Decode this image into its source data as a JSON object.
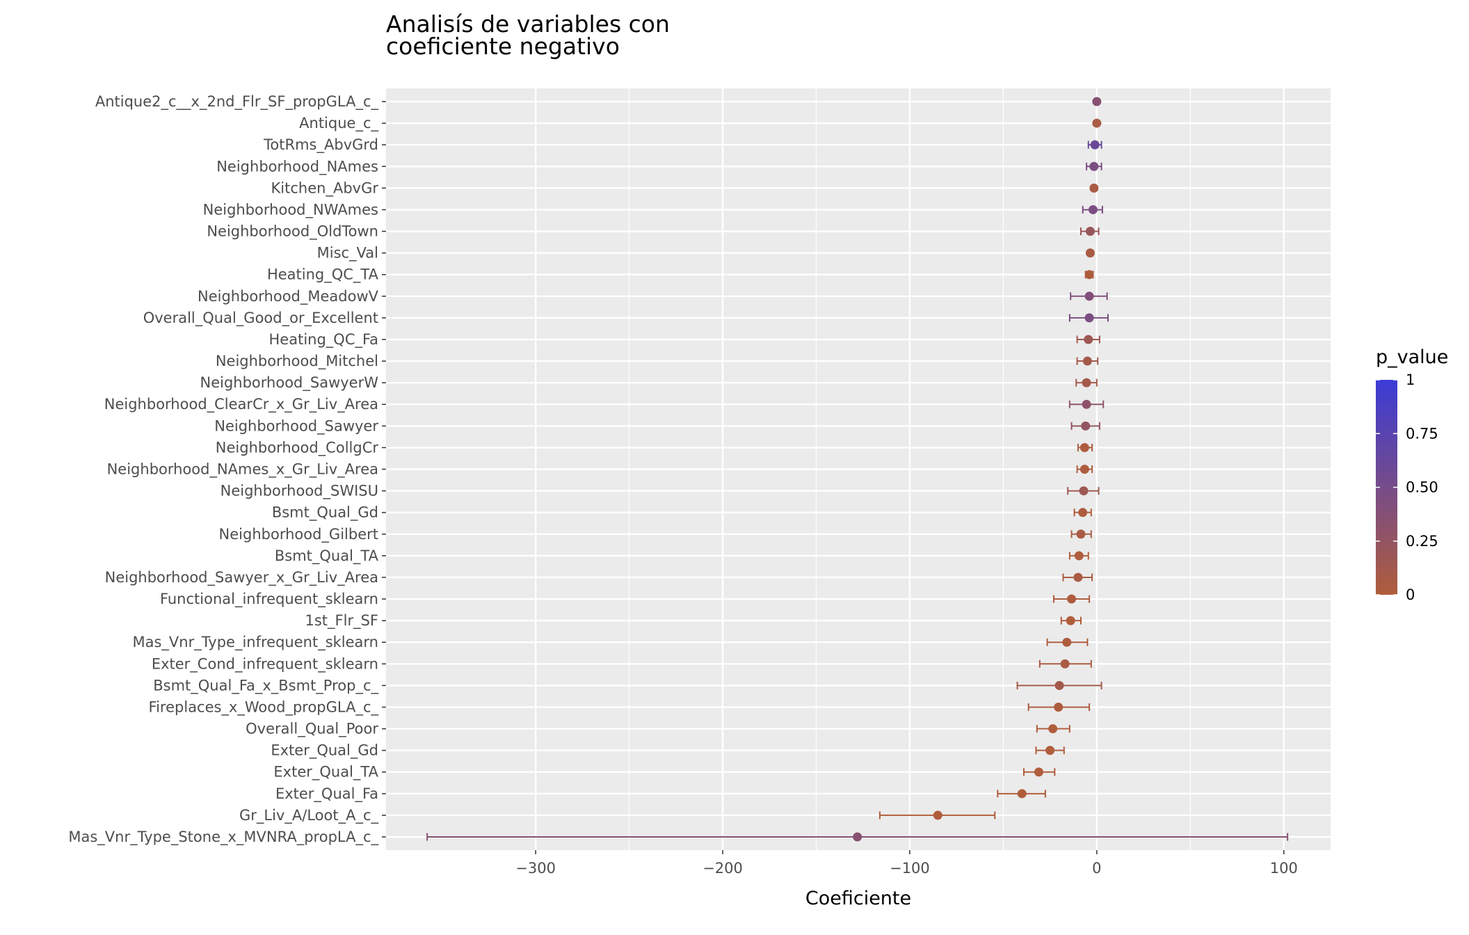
{
  "chart_data": {
    "type": "errorbar",
    "title_lines": [
      "Analisís de variables con",
      "coeficiente negativo"
    ],
    "xlabel": "Coeficiente",
    "ylabel": "",
    "xlim": [
      -380,
      125
    ],
    "x_ticks": [
      -300,
      -200,
      -100,
      0,
      100
    ],
    "x_tick_labels": [
      "−300",
      "−200",
      "−100",
      "0",
      "100"
    ],
    "grid": true,
    "legend": {
      "title": "p_value",
      "position": "right",
      "range": [
        0,
        1
      ],
      "ticks": [
        0,
        0.25,
        0.5,
        0.75,
        1
      ],
      "tick_labels": [
        "0",
        "0.25",
        "0.50",
        "0.75",
        "1"
      ],
      "color_low": "#b05d3b",
      "color_high": "#3b3bd6"
    },
    "colors": {
      "panel": "#ebebeb",
      "grid": "#ffffff",
      "tick": "#333333"
    },
    "points": [
      {
        "variable": "Antique2_c__x_2nd_Flr_SF_propGLA_c_",
        "coef": 0.0,
        "low": 0.0,
        "high": 0.0,
        "p_value": 0.35
      },
      {
        "variable": "Antique_c_",
        "coef": 0.0,
        "low": 0.0,
        "high": 0.0,
        "p_value": 0.05
      },
      {
        "variable": "TotRms_AbvGrd",
        "coef": -1.0,
        "low": -4.5,
        "high": 2.5,
        "p_value": 0.6
      },
      {
        "variable": "Neighborhood_NAmes",
        "coef": -1.5,
        "low": -5.5,
        "high": 2.5,
        "p_value": 0.45
      },
      {
        "variable": "Kitchen_AbvGr",
        "coef": -1.5,
        "low": -2.5,
        "high": -0.5,
        "p_value": 0.05
      },
      {
        "variable": "Neighborhood_NWAmes",
        "coef": -2.0,
        "low": -7.5,
        "high": 3.0,
        "p_value": 0.45
      },
      {
        "variable": "Neighborhood_OldTown",
        "coef": -3.5,
        "low": -8.5,
        "high": 1.0,
        "p_value": 0.2
      },
      {
        "variable": "Misc_Val",
        "coef": -3.5,
        "low": -4.5,
        "high": -2.5,
        "p_value": 0.05
      },
      {
        "variable": "Heating_QC_TA",
        "coef": -4.0,
        "low": -6.0,
        "high": -2.0,
        "p_value": 0.02
      },
      {
        "variable": "Neighborhood_MeadowV",
        "coef": -4.0,
        "low": -14.0,
        "high": 5.5,
        "p_value": 0.4
      },
      {
        "variable": "Overall_Qual_Good_or_Excellent",
        "coef": -4.0,
        "low": -14.5,
        "high": 6.0,
        "p_value": 0.45
      },
      {
        "variable": "Heating_QC_Fa",
        "coef": -4.5,
        "low": -10.5,
        "high": 1.5,
        "p_value": 0.15
      },
      {
        "variable": "Neighborhood_Mitchel",
        "coef": -5.0,
        "low": -10.5,
        "high": 0.5,
        "p_value": 0.1
      },
      {
        "variable": "Neighborhood_SawyerW",
        "coef": -5.5,
        "low": -11.0,
        "high": 0.0,
        "p_value": 0.1
      },
      {
        "variable": "Neighborhood_ClearCr_x_Gr_Liv_Area",
        "coef": -5.5,
        "low": -14.5,
        "high": 3.5,
        "p_value": 0.3
      },
      {
        "variable": "Neighborhood_Sawyer",
        "coef": -6.0,
        "low": -13.5,
        "high": 1.5,
        "p_value": 0.25
      },
      {
        "variable": "Neighborhood_CollgCr",
        "coef": -6.5,
        "low": -10.0,
        "high": -2.5,
        "p_value": 0.02
      },
      {
        "variable": "Neighborhood_NAmes_x_Gr_Liv_Area",
        "coef": -6.5,
        "low": -10.5,
        "high": -2.5,
        "p_value": 0.02
      },
      {
        "variable": "Neighborhood_SWISU",
        "coef": -7.0,
        "low": -15.5,
        "high": 1.0,
        "p_value": 0.15
      },
      {
        "variable": "Bsmt_Qual_Gd",
        "coef": -7.5,
        "low": -12.0,
        "high": -3.0,
        "p_value": 0.02
      },
      {
        "variable": "Neighborhood_Gilbert",
        "coef": -8.5,
        "low": -13.5,
        "high": -3.0,
        "p_value": 0.05
      },
      {
        "variable": "Bsmt_Qual_TA",
        "coef": -9.5,
        "low": -14.5,
        "high": -4.5,
        "p_value": 0.01
      },
      {
        "variable": "Neighborhood_Sawyer_x_Gr_Liv_Area",
        "coef": -10.0,
        "low": -18.0,
        "high": -2.5,
        "p_value": 0.05
      },
      {
        "variable": "Functional_infrequent_sklearn",
        "coef": -13.5,
        "low": -23.0,
        "high": -4.0,
        "p_value": 0.02
      },
      {
        "variable": "1st_Flr_SF",
        "coef": -14.0,
        "low": -19.0,
        "high": -8.5,
        "p_value": 0.0
      },
      {
        "variable": "Mas_Vnr_Type_infrequent_sklearn",
        "coef": -16.0,
        "low": -26.5,
        "high": -5.0,
        "p_value": 0.02
      },
      {
        "variable": "Exter_Cond_infrequent_sklearn",
        "coef": -17.0,
        "low": -30.5,
        "high": -3.0,
        "p_value": 0.05
      },
      {
        "variable": "Bsmt_Qual_Fa_x_Bsmt_Prop_c_",
        "coef": -20.0,
        "low": -42.5,
        "high": 2.5,
        "p_value": 0.1
      },
      {
        "variable": "Fireplaces_x_Wood_propGLA_c_",
        "coef": -20.5,
        "low": -36.5,
        "high": -4.0,
        "p_value": 0.02
      },
      {
        "variable": "Overall_Qual_Poor",
        "coef": -23.5,
        "low": -32.0,
        "high": -14.5,
        "p_value": 0.0
      },
      {
        "variable": "Exter_Qual_Gd",
        "coef": -25.0,
        "low": -32.5,
        "high": -17.5,
        "p_value": 0.0
      },
      {
        "variable": "Exter_Qual_TA",
        "coef": -31.0,
        "low": -39.0,
        "high": -22.5,
        "p_value": 0.0
      },
      {
        "variable": "Exter_Qual_Fa",
        "coef": -40.0,
        "low": -53.0,
        "high": -27.5,
        "p_value": 0.0
      },
      {
        "variable": "Gr_Liv_A/Loot_A_c_",
        "coef": -85.0,
        "low": -116.0,
        "high": -54.5,
        "p_value": 0.0
      },
      {
        "variable": "Mas_Vnr_Type_Stone_x_MVNRA_propLA_c_",
        "coef": -128.0,
        "low": -358.0,
        "high": 102.0,
        "p_value": 0.35
      }
    ]
  }
}
